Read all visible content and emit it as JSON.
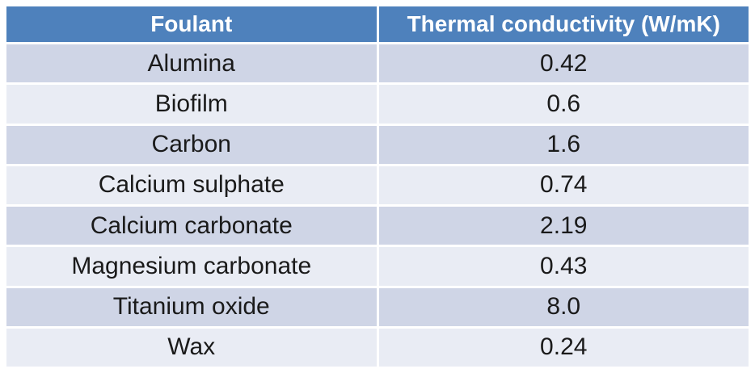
{
  "table": {
    "columns": [
      {
        "label": "Foulant"
      },
      {
        "label": "Thermal conductivity (W/mK)"
      }
    ],
    "rows": [
      {
        "foulant": "Alumina",
        "value": "0.42"
      },
      {
        "foulant": "Biofilm",
        "value": "0.6"
      },
      {
        "foulant": "Carbon",
        "value": "1.6"
      },
      {
        "foulant": "Calcium sulphate",
        "value": "0.74"
      },
      {
        "foulant": "Calcium carbonate",
        "value": "2.19"
      },
      {
        "foulant": "Magnesium carbonate",
        "value": "0.43"
      },
      {
        "foulant": "Titanium oxide",
        "value": "8.0"
      },
      {
        "foulant": "Wax",
        "value": "0.24"
      }
    ]
  },
  "chart_data": {
    "type": "table",
    "title": "",
    "columns": [
      "Foulant",
      "Thermal conductivity (W/mK)"
    ],
    "rows": [
      [
        "Alumina",
        0.42
      ],
      [
        "Biofilm",
        0.6
      ],
      [
        "Carbon",
        1.6
      ],
      [
        "Calcium sulphate",
        0.74
      ],
      [
        "Calcium carbonate",
        2.19
      ],
      [
        "Magnesium carbonate",
        0.43
      ],
      [
        "Titanium oxide",
        8.0
      ],
      [
        "Wax",
        0.24
      ]
    ]
  },
  "colors": {
    "header_bg": "#4E81BC",
    "header_text": "#FFFFFF",
    "row_band_dark": "#CFD5E6",
    "row_band_light": "#E9ECF4",
    "cell_text": "#1A1A1A",
    "divider": "#FFFFFF"
  }
}
